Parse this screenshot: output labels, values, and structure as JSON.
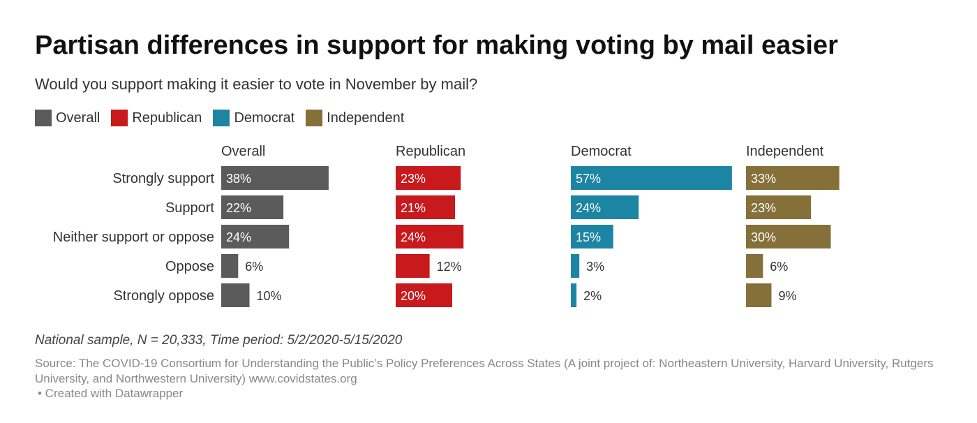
{
  "header": {
    "title": "Partisan differences in support for making voting by mail easier",
    "subtitle": "Would you support making it easier to vote in November by mail?"
  },
  "legend": [
    {
      "label": "Overall",
      "color": "#5b5b5b"
    },
    {
      "label": "Republican",
      "color": "#c8191c"
    },
    {
      "label": "Democrat",
      "color": "#1c85a3"
    },
    {
      "label": "Independent",
      "color": "#85703a"
    }
  ],
  "chart_data": {
    "type": "bar",
    "orientation": "horizontal",
    "categories": [
      "Strongly support",
      "Support",
      "Neither support or oppose",
      "Oppose",
      "Strongly oppose"
    ],
    "series": [
      {
        "name": "Overall",
        "color": "#5b5b5b",
        "values": [
          38,
          22,
          24,
          6,
          10
        ]
      },
      {
        "name": "Republican",
        "color": "#c8191c",
        "values": [
          23,
          21,
          24,
          12,
          20
        ]
      },
      {
        "name": "Democrat",
        "color": "#1c85a3",
        "values": [
          57,
          24,
          15,
          3,
          2
        ]
      },
      {
        "name": "Independent",
        "color": "#85703a",
        "values": [
          33,
          23,
          30,
          6,
          9
        ]
      }
    ],
    "value_suffix": "%",
    "grid": false,
    "legend_position": "top-left"
  },
  "footer": {
    "notes": "National sample, N = 20,333, Time period: 5/2/2020-5/15/2020",
    "source": "Source: The COVID-19 Consortium for Understanding the Public’s Policy Preferences Across States (A joint project of: Northeastern University, Harvard University, Rutgers University, and Northwestern University) www.covidstates.org",
    "credit": "• Created with Datawrapper"
  }
}
